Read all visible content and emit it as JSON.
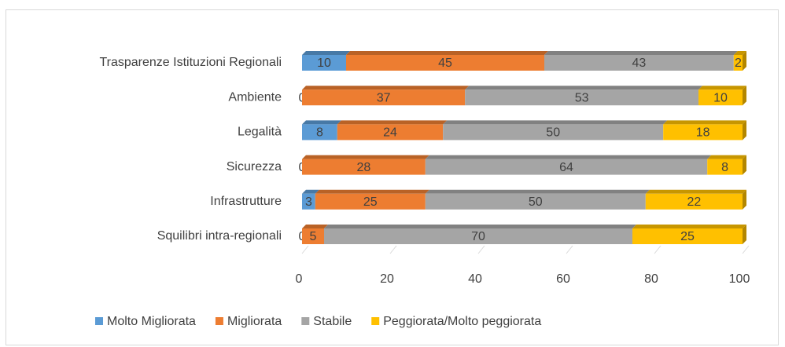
{
  "chart_data": {
    "type": "stacked_bar_3d",
    "categories": [
      "Trasparenze Istituzioni Regionali",
      "Ambiente",
      "Legalità",
      "Sicurezza",
      "Infrastrutture",
      "Squilibri intra-regionali"
    ],
    "series": [
      {
        "name": "Molto Migliorata",
        "color": "#5b9bd5",
        "values": [
          10,
          0,
          8,
          0,
          3,
          0
        ]
      },
      {
        "name": "Migliorata",
        "color": "#ed7d31",
        "values": [
          45,
          37,
          24,
          28,
          25,
          5
        ]
      },
      {
        "name": "Stabile",
        "color": "#a5a5a5",
        "values": [
          43,
          53,
          50,
          64,
          50,
          70
        ]
      },
      {
        "name": "Peggiorata/Molto peggiorata",
        "color": "#ffc000",
        "values": [
          2,
          10,
          18,
          8,
          22,
          25
        ]
      }
    ],
    "xlim": [
      0,
      100
    ],
    "xticks": [
      0,
      20,
      40,
      60,
      80,
      100
    ],
    "legend": "bottom"
  }
}
